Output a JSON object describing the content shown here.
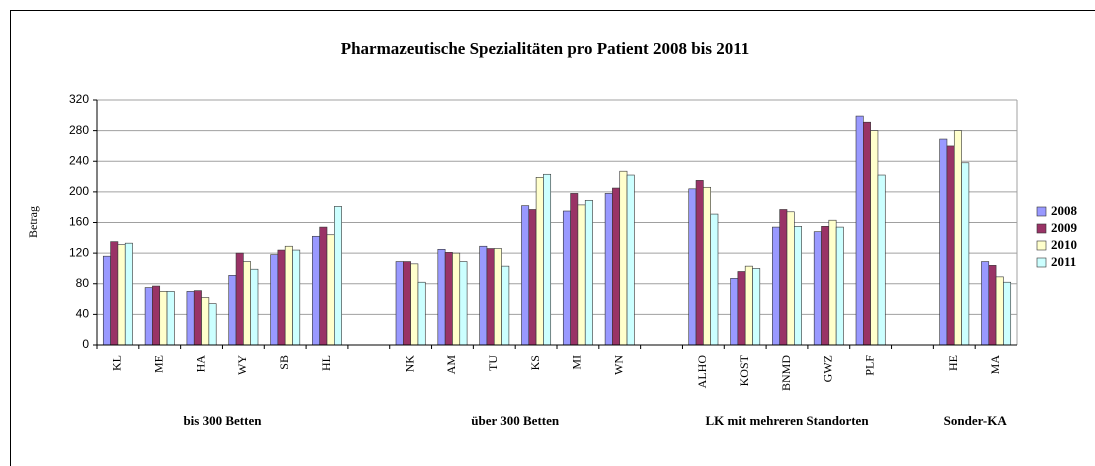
{
  "chart_data": {
    "type": "bar",
    "title": "Pharmazeutische Spezialitäten pro Patient 2008 bis 2011",
    "y_label": "Betrag",
    "categories": [
      "KL",
      "ME",
      "HA",
      "WY",
      "SB",
      "HL",
      null,
      "NK",
      "AM",
      "TU",
      "KS",
      "MI",
      "WN",
      null,
      "ALHO",
      "KOST",
      "BNMD",
      "GWZ",
      "PLF",
      null,
      "HE",
      "MA"
    ],
    "group_labels": [
      "bis 300 Betten",
      "über 300 Betten",
      "LK mit mehreren Standorten",
      "Sonder-KA"
    ],
    "series": [
      {
        "name": "2008",
        "color": "#9999ff",
        "values": [
          116,
          75,
          70,
          91,
          118,
          142,
          null,
          109,
          125,
          129,
          182,
          175,
          198,
          null,
          204,
          87,
          154,
          148,
          299,
          null,
          269,
          109
        ]
      },
      {
        "name": "2009",
        "color": "#993366",
        "values": [
          135,
          77,
          71,
          120,
          124,
          154,
          null,
          109,
          121,
          126,
          177,
          198,
          205,
          null,
          215,
          96,
          177,
          155,
          291,
          null,
          260,
          104
        ]
      },
      {
        "name": "2010",
        "color": "#ffffcc",
        "values": [
          131,
          70,
          62,
          109,
          129,
          144,
          null,
          106,
          120,
          126,
          219,
          183,
          227,
          null,
          206,
          103,
          174,
          163,
          280,
          null,
          280,
          89
        ]
      },
      {
        "name": "2011",
        "color": "#ccffff",
        "values": [
          133,
          70,
          54,
          99,
          124,
          181,
          null,
          82,
          109,
          103,
          223,
          189,
          222,
          null,
          171,
          100,
          155,
          154,
          222,
          null,
          238,
          82
        ]
      }
    ],
    "ylim": [
      0,
      320
    ],
    "yticks": [
      0,
      40,
      80,
      120,
      160,
      200,
      240,
      280,
      320
    ],
    "grid": true,
    "legend": "right"
  }
}
